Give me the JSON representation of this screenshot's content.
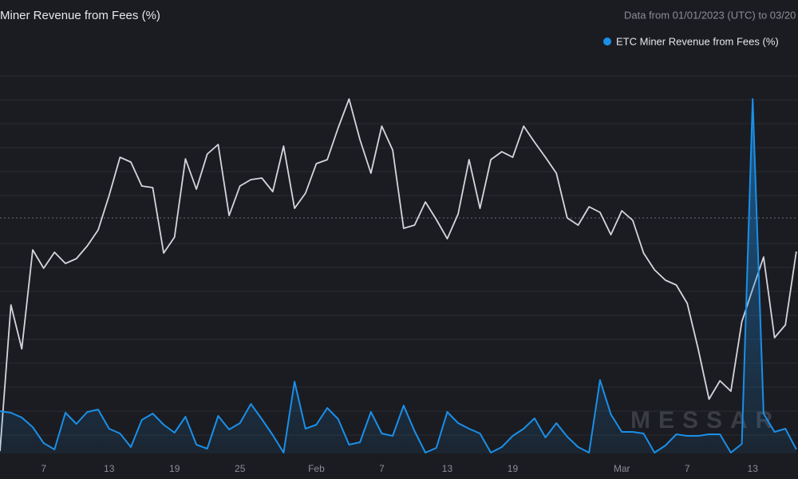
{
  "chart_data": {
    "type": "line",
    "title": "Miner Revenue from Fees (%)",
    "subtitle": "Data from 01/01/2023 (UTC) to 03/20",
    "watermark": "MESSAR",
    "categories": [
      null,
      null,
      null,
      null,
      "7",
      null,
      null,
      null,
      null,
      null,
      "13",
      null,
      null,
      null,
      null,
      null,
      "19",
      null,
      null,
      null,
      null,
      null,
      "25",
      null,
      null,
      null,
      null,
      null,
      null,
      "Feb",
      null,
      null,
      null,
      null,
      null,
      "7",
      null,
      null,
      null,
      null,
      null,
      "13",
      null,
      null,
      null,
      null,
      null,
      "19",
      null,
      null,
      null,
      null,
      null,
      null,
      null,
      null,
      null,
      "Mar",
      null,
      null,
      null,
      null,
      null,
      "7",
      null,
      null,
      null,
      null,
      null,
      "13",
      null,
      null,
      null,
      null
    ],
    "ylim": [
      0,
      100
    ],
    "series": [
      {
        "name": "ETC Miner Revenue from Fees (%)",
        "color": "#1a8fe8",
        "area": true,
        "values": [
          10.6,
          10.2,
          9,
          6.6,
          2.6,
          1,
          10.2,
          7.4,
          10.4,
          11,
          6.2,
          5,
          1.6,
          8.4,
          10,
          7.2,
          5.2,
          9.2,
          2.2,
          1.2,
          9.4,
          6,
          7.6,
          12.4,
          8.6,
          4.6,
          0.2,
          18,
          6.2,
          7.2,
          11.4,
          8.6,
          2.2,
          2.8,
          10.4,
          5,
          4.4,
          12,
          5.6,
          0.2,
          1.4,
          10.4,
          7.6,
          6.2,
          5,
          0.2,
          1.6,
          4.4,
          6.2,
          8.8,
          4,
          7.6,
          4.2,
          1.6,
          0.2,
          18.4,
          9.8,
          5.4,
          5.4,
          5,
          0.2,
          2,
          4.8,
          4.4,
          4.4,
          4.8,
          4.8,
          0.2,
          2.4,
          88.8,
          10,
          5.4,
          6.2,
          1
        ]
      },
      {
        "color": "#d4d6dd",
        "values": [
          0.6,
          37.2,
          26.2,
          51,
          46.4,
          50.4,
          47.6,
          48.8,
          52,
          56,
          64.6,
          74.2,
          73,
          67,
          66.6,
          50.2,
          54.2,
          73.8,
          66.2,
          75,
          77.4,
          59.6,
          67,
          68.6,
          69,
          65.6,
          77,
          61.4,
          65.2,
          72.6,
          73.6,
          81.6,
          88.8,
          78.6,
          70.2,
          82,
          76,
          56.4,
          57.2,
          63,
          58.6,
          53.8,
          60,
          73.6,
          61.4,
          73.6,
          75.6,
          74.2,
          82,
          78,
          74.2,
          70.2,
          59,
          57.2,
          61.8,
          60.4,
          54.8,
          60.8,
          58.4,
          50.2,
          46,
          43.4,
          42.2,
          37.6,
          26.2,
          13.6,
          18.2,
          15.6,
          33,
          41.2,
          49.2,
          29,
          32.2,
          50.6
        ]
      }
    ]
  }
}
